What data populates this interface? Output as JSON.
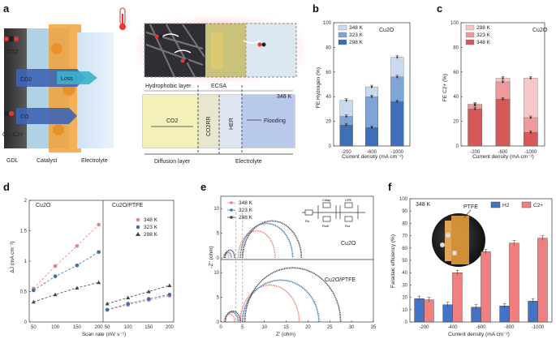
{
  "panel_a": {
    "label": "a",
    "left_labels": [
      "CO2",
      "CO2",
      "Loss",
      "CO",
      "C1, C2+"
    ],
    "bottom_labels": [
      "GDL",
      "Catalyst",
      "Electrolyte"
    ],
    "top_labels": [
      "Hydrophobic layer",
      "ECSA"
    ],
    "temperature": "348 K",
    "zones": [
      "CO2",
      "CO2RR",
      "HER",
      "Flooding"
    ],
    "bottom_axis": [
      "Diffusion layer",
      "Electrolyte"
    ]
  },
  "panel_b": {
    "label": "b",
    "material": "Cu2O",
    "ylabel": "FE Hydrogen (%)",
    "xlabel": "Current density (mA cm⁻²)",
    "chart_data": {
      "type": "bar",
      "categories": [
        "-200",
        "-600",
        "-1000"
      ],
      "series": [
        {
          "name": "348 K",
          "values": [
            37,
            48,
            72
          ],
          "color": "#c9d9ee"
        },
        {
          "name": "323 K",
          "values": [
            24,
            40,
            56
          ],
          "color": "#7fa4d6"
        },
        {
          "name": "298 K",
          "values": [
            17,
            15,
            36
          ],
          "color": "#3f6fb9"
        }
      ],
      "ylim": [
        0,
        100
      ],
      "yticks": [
        0,
        20,
        40,
        60,
        80,
        100
      ]
    }
  },
  "panel_c": {
    "label": "c",
    "material": "Cu2O",
    "ylabel": "FE C2+ (%)",
    "xlabel": "Current density (mA cm⁻²)",
    "chart_data": {
      "type": "bar",
      "categories": [
        "-200",
        "-600",
        "-1000"
      ],
      "series": [
        {
          "name": "298 K",
          "values": [
            34,
            55,
            55
          ],
          "color": "#f6c7c7"
        },
        {
          "name": "323 K",
          "values": [
            33,
            52,
            23
          ],
          "color": "#ee9a9a"
        },
        {
          "name": "348 K",
          "values": [
            30,
            38,
            11
          ],
          "color": "#d85858"
        }
      ],
      "ylim": [
        0,
        100
      ],
      "yticks": [
        0,
        20,
        40,
        60,
        80,
        100
      ]
    }
  },
  "panel_d": {
    "label": "d",
    "ylabel": "ΔJ (mA cm⁻²)",
    "xlabel": "Scan rate (mV s⁻¹)",
    "left_title": "Cu2O",
    "right_title": "Cu2O/PTFE",
    "chart_data": {
      "type": "scatter",
      "x": [
        50,
        100,
        150,
        200
      ],
      "ylim": [
        0,
        2.0
      ],
      "yticks": [
        0,
        0.5,
        1.0,
        1.5,
        2.0
      ],
      "xticks": [
        50,
        100,
        150,
        200
      ],
      "left": [
        {
          "name": "348 K",
          "values": [
            0.55,
            0.92,
            1.25,
            1.6
          ],
          "color": "#f08080"
        },
        {
          "name": "323 K",
          "values": [
            0.52,
            0.75,
            0.93,
            1.15
          ],
          "color": "#3a6fae"
        },
        {
          "name": "298 K",
          "values": [
            0.33,
            0.45,
            0.56,
            0.65
          ],
          "color": "#444444"
        }
      ],
      "right": [
        {
          "name": "348 K",
          "values": [
            0.2,
            0.28,
            0.36,
            0.43
          ],
          "color": "#f08080"
        },
        {
          "name": "323 K",
          "values": [
            0.2,
            0.3,
            0.38,
            0.45
          ],
          "color": "#3a6fae"
        },
        {
          "name": "298 K",
          "values": [
            0.3,
            0.4,
            0.5,
            0.6
          ],
          "color": "#444444"
        }
      ]
    }
  },
  "panel_e": {
    "label": "e",
    "ylabel": "-Z'' (ohm)",
    "xlabel": "Z' (ohm)",
    "top_label": "Cu2O",
    "bottom_label": "Cu2O/PTFE",
    "circuit": [
      "Rs",
      "Cdlap",
      "Rcdl",
      "CPE",
      "Rct"
    ],
    "chart_data": {
      "type": "line",
      "xlim": [
        0,
        35
      ],
      "xticks": [
        0,
        5,
        10,
        15,
        20,
        25,
        30,
        35
      ],
      "yticks": [
        0,
        5,
        10
      ],
      "series": [
        {
          "name": "348 K",
          "color": "#f08080"
        },
        {
          "name": "323 K",
          "color": "#3a6fae"
        },
        {
          "name": "298 K",
          "color": "#444444"
        }
      ],
      "top": {
        "348 K": [
          [
            0.6,
            1.8,
            1.0
          ],
          [
            4.0,
            12.5,
            5.5
          ]
        ],
        "323 K": [
          [
            0.8,
            2.4,
            1.2
          ],
          [
            4.5,
            16.5,
            7.0
          ]
        ],
        "298 K": [
          [
            1.0,
            3.2,
            1.6
          ],
          [
            5.0,
            18.5,
            7.5
          ]
        ]
      },
      "bottom": {
        "348 K": [
          [
            0.8,
            3.2,
            1.6
          ],
          [
            4.5,
            18.0,
            7.5
          ]
        ],
        "323 K": [
          [
            1.0,
            4.0,
            2.0
          ],
          [
            5.0,
            22.5,
            8.5
          ]
        ],
        "298 K": [
          [
            1.0,
            4.5,
            2.2
          ],
          [
            5.5,
            27.5,
            11.0
          ]
        ]
      }
    }
  },
  "panel_f": {
    "label": "f",
    "temperature": "348 K",
    "inset_label": "PTFE",
    "ylabel": "Faradaic efficiency (%)",
    "xlabel": "Current density (mA cm⁻²)",
    "chart_data": {
      "type": "bar",
      "categories": [
        "-200",
        "-400",
        "-600",
        "-800",
        "-1000"
      ],
      "series": [
        {
          "name": "H2",
          "values": [
            19,
            14,
            12,
            13,
            17
          ],
          "color": "#4472c4"
        },
        {
          "name": "C2+",
          "values": [
            18,
            40,
            57,
            64,
            68
          ],
          "color": "#f08080"
        }
      ],
      "ylim": [
        0,
        100
      ],
      "yticks": [
        0,
        10,
        20,
        30,
        40,
        50,
        60,
        70,
        80,
        90,
        100
      ]
    }
  }
}
